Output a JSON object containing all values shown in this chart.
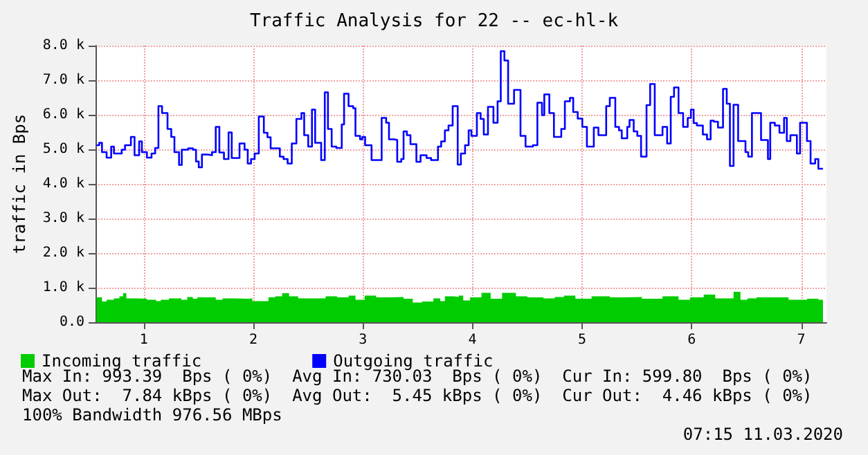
{
  "chart_data": {
    "type": "step",
    "title": "Traffic Analysis for 22 -- ec-hl-k",
    "ylabel": "traffic in Bps",
    "xlim": [
      0.56,
      7.23
    ],
    "xticks": [
      1,
      2,
      3,
      4,
      5,
      6,
      7
    ],
    "ylim": [
      0,
      8000
    ],
    "yticks": [
      {
        "value": 0,
        "label": "0.0"
      },
      {
        "value": 1000,
        "label": "1.0 k"
      },
      {
        "value": 2000,
        "label": "2.0 k"
      },
      {
        "value": 3000,
        "label": "3.0 k"
      },
      {
        "value": 4000,
        "label": "4.0 k"
      },
      {
        "value": 5000,
        "label": "5.0 k"
      },
      {
        "value": 6000,
        "label": "6.0 k"
      },
      {
        "value": 7000,
        "label": "7.0 k"
      },
      {
        "value": 8000,
        "label": "8.0 k"
      }
    ],
    "grid": true,
    "legend": "bottom left",
    "marker": "none",
    "line_style": "solid",
    "series": [
      {
        "name": "Incoming traffic",
        "type": "area",
        "color": "#00cc00",
        "x": [
          0.569,
          0.619,
          0.661,
          0.728,
          0.778,
          0.812,
          0.841,
          0.925,
          1.029,
          1.113,
          1.155,
          1.23,
          1.343,
          1.397,
          1.448,
          1.489,
          1.657,
          1.719,
          1.824,
          1.949,
          1.991,
          2.138,
          2.2,
          2.263,
          2.326,
          2.409,
          2.66,
          2.765,
          2.869,
          2.932,
          3.016,
          3.12,
          3.246,
          3.371,
          3.455,
          3.539,
          3.643,
          3.706,
          3.748,
          3.831,
          3.873,
          3.915,
          3.978,
          4.082,
          4.166,
          4.27,
          4.396,
          4.5,
          4.647,
          4.751,
          4.835,
          4.939,
          5.086,
          5.253,
          5.379,
          5.546,
          5.734,
          5.88,
          5.985,
          6.11,
          6.215,
          6.382,
          6.445,
          6.508,
          6.591,
          6.717,
          6.884,
          7.052,
          7.156,
          7.198
        ],
        "values": [
          720,
          600,
          650,
          690,
          750,
          840,
          690,
          680,
          650,
          610,
          650,
          690,
          650,
          730,
          680,
          720,
          650,
          690,
          680,
          690,
          610,
          720,
          750,
          840,
          750,
          690,
          750,
          720,
          770,
          650,
          770,
          720,
          730,
          680,
          570,
          600,
          690,
          610,
          750,
          730,
          770,
          630,
          720,
          850,
          680,
          850,
          750,
          720,
          690,
          730,
          770,
          680,
          750,
          720,
          730,
          680,
          750,
          650,
          720,
          800,
          690,
          880,
          650,
          690,
          720,
          720,
          650,
          680,
          650,
          600
        ]
      },
      {
        "name": "Outgoing traffic",
        "color": "#0000ff",
        "x": [
          0.569,
          0.594,
          0.619,
          0.661,
          0.703,
          0.728,
          0.799,
          0.829,
          0.883,
          0.916,
          0.958,
          0.983,
          1.029,
          1.071,
          1.104,
          1.134,
          1.167,
          1.217,
          1.251,
          1.28,
          1.322,
          1.347,
          1.406,
          1.448,
          1.477,
          1.502,
          1.531,
          1.586,
          1.623,
          1.657,
          1.69,
          1.732,
          1.774,
          1.803,
          1.874,
          1.92,
          1.949,
          1.979,
          2.012,
          2.05,
          2.096,
          2.129,
          2.158,
          2.242,
          2.276,
          2.313,
          2.351,
          2.393,
          2.439,
          2.464,
          2.501,
          2.535,
          2.564,
          2.619,
          2.652,
          2.681,
          2.715,
          2.757,
          2.807,
          2.828,
          2.869,
          2.911,
          2.932,
          2.974,
          2.995,
          3.02,
          3.079,
          3.171,
          3.212,
          3.238,
          3.288,
          3.313,
          3.35,
          3.371,
          3.401,
          3.434,
          3.488,
          3.526,
          3.581,
          3.622,
          3.685,
          3.714,
          3.748,
          3.781,
          3.819,
          3.865,
          3.894,
          3.932,
          3.965,
          3.99,
          4.04,
          4.074,
          4.103,
          4.141,
          4.191,
          4.229,
          4.258,
          4.291,
          4.325,
          4.379,
          4.438,
          4.484,
          4.551,
          4.592,
          4.634,
          4.655,
          4.701,
          4.743,
          4.81,
          4.843,
          4.889,
          4.919,
          4.96,
          5.002,
          5.044,
          5.107,
          5.149,
          5.22,
          5.253,
          5.303,
          5.337,
          5.362,
          5.412,
          5.433,
          5.471,
          5.504,
          5.538,
          5.588,
          5.621,
          5.663,
          5.734,
          5.776,
          5.809,
          5.839,
          5.88,
          5.922,
          5.964,
          5.993,
          6.018,
          6.048,
          6.102,
          6.14,
          6.173,
          6.203,
          6.24,
          6.286,
          6.32,
          6.349,
          6.382,
          6.424,
          6.491,
          6.516,
          6.55,
          6.633,
          6.696,
          6.717,
          6.759,
          6.801,
          6.843,
          6.868,
          6.901,
          6.96,
          6.989,
          7.052,
          7.085,
          7.127,
          7.156,
          7.198
        ],
        "values": [
          5120,
          5190,
          4920,
          4760,
          5080,
          4880,
          4990,
          5120,
          5360,
          4830,
          5230,
          4920,
          4760,
          4880,
          5040,
          6250,
          6050,
          5590,
          5360,
          4920,
          4550,
          4990,
          5030,
          4990,
          4650,
          4480,
          4850,
          4830,
          4920,
          5650,
          4910,
          4720,
          5490,
          4750,
          5170,
          4990,
          4590,
          4720,
          4880,
          5950,
          5480,
          5350,
          5030,
          4790,
          4720,
          4590,
          5170,
          5880,
          6050,
          5410,
          5080,
          6150,
          5190,
          4690,
          6650,
          5590,
          5080,
          5040,
          5720,
          6610,
          6250,
          6190,
          5390,
          5290,
          5360,
          5120,
          4690,
          5910,
          5770,
          5290,
          5270,
          4640,
          4720,
          5520,
          5410,
          5150,
          4640,
          4830,
          4750,
          4690,
          5080,
          5230,
          5550,
          5690,
          6250,
          4560,
          4880,
          5120,
          5550,
          5390,
          6050,
          5880,
          5430,
          6230,
          5770,
          6390,
          7840,
          7570,
          6320,
          6720,
          5390,
          5080,
          5120,
          6350,
          5990,
          6590,
          6050,
          5360,
          5590,
          6390,
          6490,
          6080,
          5890,
          5650,
          5080,
          5630,
          5410,
          6250,
          6490,
          5650,
          5550,
          5320,
          5650,
          5850,
          5520,
          5390,
          4790,
          6280,
          6890,
          5410,
          5650,
          5170,
          6520,
          6790,
          6050,
          5650,
          5910,
          6150,
          5760,
          5690,
          5430,
          5290,
          5830,
          5800,
          5630,
          6750,
          6320,
          4520,
          6290,
          5240,
          4920,
          4790,
          6050,
          5270,
          4720,
          5770,
          5690,
          5480,
          5910,
          5240,
          5410,
          4880,
          5770,
          5240,
          4590,
          4720,
          4440,
          4440
        ]
      }
    ],
    "annotations": [
      "Max In: 993.39  Bps ( 0%)  Avg In: 730.03  Bps ( 0%)  Cur In: 599.80  Bps ( 0%)",
      "Max Out:  7.84 kBps ( 0%)  Avg Out:  5.45 kBps ( 0%)  Cur Out:  4.46 kBps ( 0%)",
      "100% Bandwidth 976.56 MBps",
      "07:15 11.03.2020"
    ]
  }
}
